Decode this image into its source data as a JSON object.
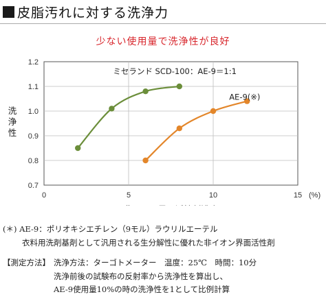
{
  "heading": {
    "title": "皮脂汚れに対する洗浄力"
  },
  "chart_data": {
    "type": "line",
    "title": "少ない使用量で洗浄性が良好",
    "xlabel": "非イオン界面活性剤濃度",
    "xunit": "(%)",
    "ylabel": "洗浄性",
    "xlim": [
      0,
      15
    ],
    "ylim": [
      0.7,
      1.2
    ],
    "x_ticks": [
      "0",
      "5",
      "10",
      "15"
    ],
    "y_ticks": [
      "0.7",
      "0.8",
      "0.9",
      "1.0",
      "1.1",
      "1.2"
    ],
    "grid": true,
    "series": [
      {
        "name": "ミセランド SCD-100：AE-9＝1:1",
        "color": "#6b8e3a",
        "x": [
          2,
          4,
          6,
          8
        ],
        "y": [
          0.85,
          1.01,
          1.08,
          1.1
        ]
      },
      {
        "name": "AE-9(※)",
        "color": "#e3862a",
        "x": [
          6,
          8,
          10,
          12
        ],
        "y": [
          0.8,
          0.93,
          1.0,
          1.04
        ]
      }
    ]
  },
  "notes": {
    "footnote_line1": "(＊) AE-9：ポリオキシエチレン（9モル）ラウリルエーテル",
    "footnote_line2": "衣料用洗剤基剤として汎用される生分解性に優れた非イオン界面活性剤",
    "method_label": "【測定方法】",
    "method_line1": "洗浄方法：ターゴトメーター　温度：25℃　時間：10分",
    "method_line2": "洗浄前後の試験布の反射率から洗浄性を算出し、",
    "method_line3": "AE-9使用量10%の時の洗浄性を1として比例計算"
  }
}
